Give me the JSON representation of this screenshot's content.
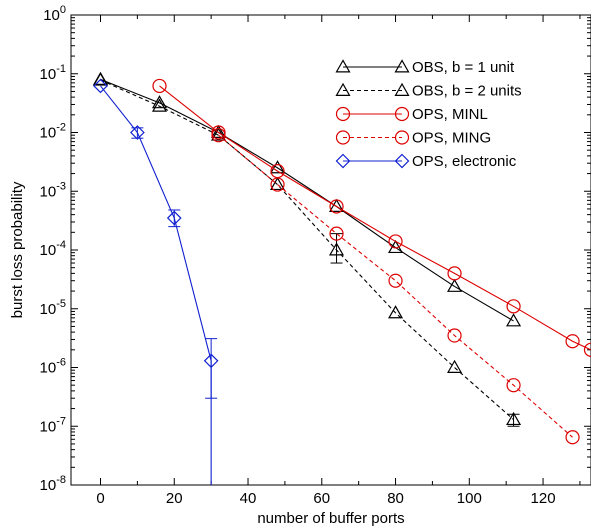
{
  "chart_data": {
    "type": "line",
    "xlabel": "number of buffer ports",
    "ylabel": "burst loss probability",
    "xlim": [
      -8,
      133
    ],
    "ylim_log10": [
      -8,
      0
    ],
    "y_scale": "log",
    "x_ticks": [
      0,
      20,
      40,
      60,
      80,
      100,
      120
    ],
    "y_tick_exponents": [
      0,
      -1,
      -2,
      -3,
      -4,
      -5,
      -6,
      -7,
      -8
    ],
    "grid": false,
    "legend_position": "top-right",
    "series": [
      {
        "name": "OBS, b = 1 unit",
        "color": "#000000",
        "dash": "solid",
        "marker": "triangle",
        "x": [
          0,
          16,
          32,
          48,
          64,
          80,
          96,
          112
        ],
        "y": [
          0.08,
          0.032,
          0.01,
          0.0025,
          0.00055,
          0.00011,
          2.4e-05,
          6.2e-06
        ],
        "errors": [
          null,
          null,
          null,
          null,
          null,
          null,
          null,
          null
        ]
      },
      {
        "name": "OBS, b = 2 units",
        "color": "#000000",
        "dash": "dashed",
        "marker": "triangle",
        "x": [
          0,
          16,
          32,
          48,
          64,
          80,
          96,
          112
        ],
        "y": [
          0.078,
          0.028,
          0.009,
          0.0013,
          0.0001,
          8.5e-06,
          1e-06,
          1.3e-07
        ],
        "errors": [
          null,
          null,
          null,
          null,
          [
            6e-05,
            0.00019
          ],
          null,
          null,
          [
            1e-07,
            1.6e-07
          ]
        ]
      },
      {
        "name": "OPS, MINL",
        "color": "#dd0000",
        "dash": "solid",
        "marker": "circle",
        "x": [
          16,
          32,
          48,
          64,
          80,
          96,
          112,
          128,
          133
        ],
        "y": [
          0.062,
          0.01,
          0.0022,
          0.00055,
          0.00014,
          4e-05,
          1.1e-05,
          2.8e-06,
          2e-06
        ],
        "errors": [
          null,
          null,
          null,
          null,
          null,
          null,
          null,
          null,
          null
        ]
      },
      {
        "name": "OPS, MING",
        "color": "#dd0000",
        "dash": "dashed",
        "marker": "circle",
        "x": [
          32,
          48,
          64,
          80,
          96,
          112,
          128
        ],
        "y": [
          0.009,
          0.0013,
          0.00019,
          3e-05,
          3.5e-06,
          5e-07,
          6.5e-08
        ],
        "errors": [
          null,
          null,
          null,
          null,
          null,
          null,
          null
        ]
      },
      {
        "name": "OPS, electronic",
        "color": "#1020d0",
        "dash": "solid",
        "marker": "diamond",
        "x": [
          0,
          10,
          20,
          30,
          30
        ],
        "y": [
          0.062,
          0.01,
          0.00035,
          1.3e-06,
          1e-08
        ],
        "errors": [
          null,
          [
            0.008,
            0.012
          ],
          [
            0.00025,
            0.00048
          ],
          [
            3e-07,
            3.1e-06
          ],
          null
        ]
      }
    ]
  }
}
